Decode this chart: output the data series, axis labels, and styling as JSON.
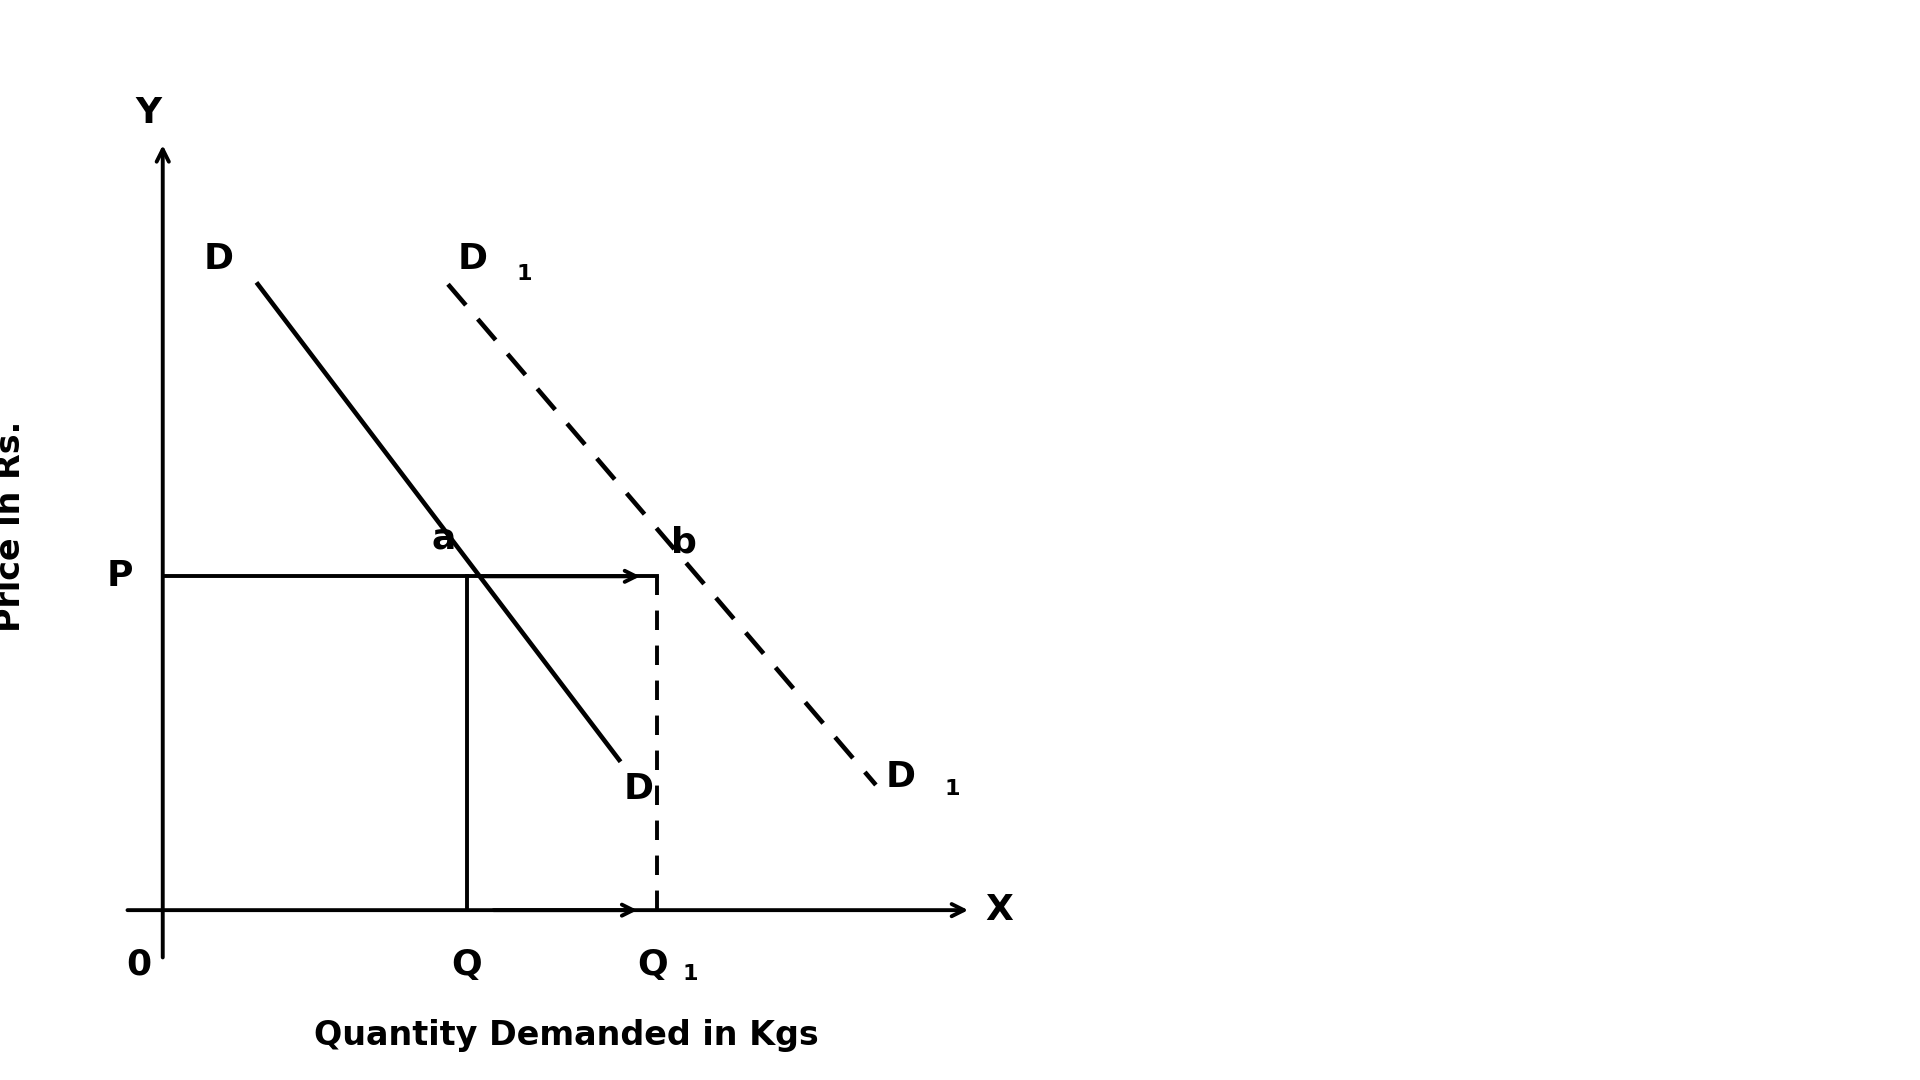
{
  "bg_color": "#ffffff",
  "axis_color": "#000000",
  "line_color": "#000000",
  "figsize": [
    19.2,
    10.8
  ],
  "dpi": 100,
  "xlim": [
    -0.5,
    10
  ],
  "ylim": [
    -1.0,
    10
  ],
  "ox": 0,
  "oy": 0,
  "P_y": 4.0,
  "Q_x": 3.2,
  "Q1_x": 5.2,
  "D_x0": 1.0,
  "D_y0": 7.5,
  "D_x1": 4.8,
  "D_y1": 1.8,
  "D1_x0": 3.0,
  "D1_y0": 7.5,
  "D1_x1": 7.5,
  "D1_y1": 1.5,
  "x_axis_left": -0.4,
  "x_axis_right": 8.5,
  "y_axis_bottom": -0.6,
  "y_axis_top": 9.2,
  "ylabel": "Price in Rs.",
  "xlabel": "Quantity Demanded in Kgs",
  "label_fontsize": 24,
  "annotation_fontsize": 26,
  "lw": 2.8
}
